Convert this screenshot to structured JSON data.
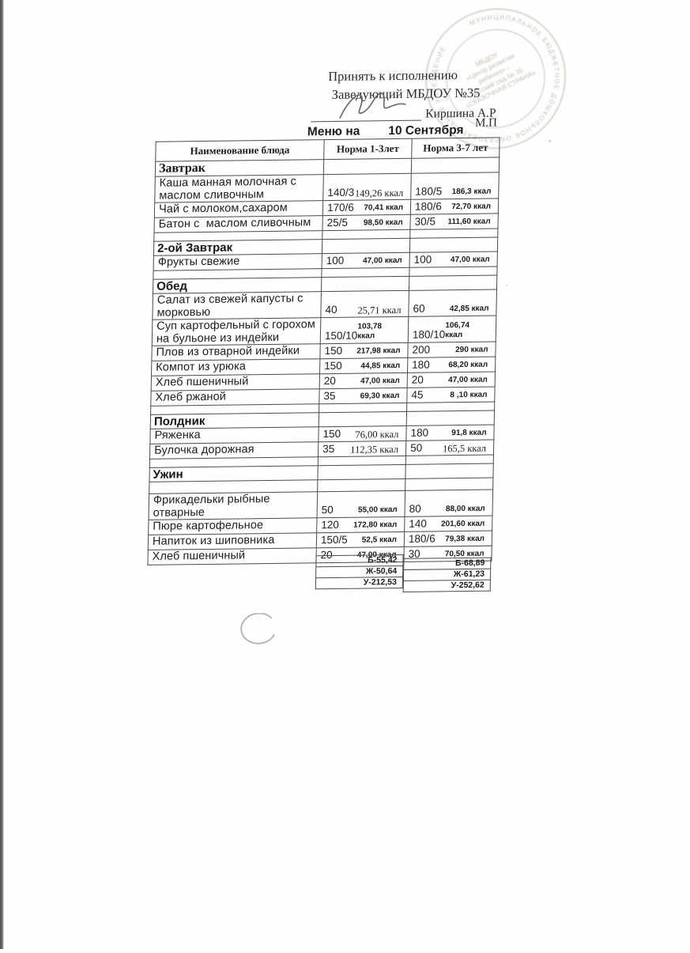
{
  "approval": {
    "line1": "Принять к исполнению",
    "line2": "Заведующий МБДОУ №35",
    "signatory": "Киршина А.Р",
    "seal_abbr": "М.П"
  },
  "title": {
    "prefix": "Меню на",
    "date": "10 Сентября"
  },
  "stamp": {
    "ring_text": "МУНИЦИПАЛЬНОЕ БЮДЖЕТНОЕ ДОШКОЛЬНОЕ ОБРАЗОВАТЕЛЬНОЕ УЧРЕЖДЕНИЕ",
    "center_lines": [
      "МБДОУ",
      "«Центр развития",
      "ребенка» -",
      "детский сад № 35",
      "«СКАЗОЧНАЯ СТРАНА»"
    ]
  },
  "table": {
    "columns": [
      "Наименование блюда",
      "Норма 1-3лет",
      "Норма 3-7 лет"
    ],
    "rows": [
      {
        "type": "section",
        "label": "Завтрак",
        "serif": true
      },
      {
        "type": "dish",
        "name": "Каша манная молочная с маслом сливочным",
        "lines": 2,
        "p1": "140/3",
        "k1": "149,26 ккал",
        "k1_plain": true,
        "p2": "180/5",
        "k2": "186,3 ккал"
      },
      {
        "type": "dish",
        "name": "Чай с молоком,сахаром",
        "p1": "170/6",
        "k1": "70,41 ккал",
        "p2": "180/6",
        "k2": "72,70 ккал"
      },
      {
        "type": "dish",
        "name": "Батон с  маслом сливочным",
        "p1": "25/5",
        "k1": "98,50 ккал",
        "p2": "30/5",
        "k2": "111,60 ккал"
      },
      {
        "type": "spacer"
      },
      {
        "type": "section",
        "label": "2-ой Завтрак"
      },
      {
        "type": "dish",
        "name": "Фрукты свежие",
        "p1": "100",
        "k1": "47,00 ккал",
        "p2": "100",
        "k2": "47,00 ккал"
      },
      {
        "type": "spacer"
      },
      {
        "type": "section",
        "label": "Обед"
      },
      {
        "type": "dish",
        "name": "Салат из свежей капусты с морковью",
        "lines": 2,
        "p1": "40",
        "k1": "25,71 ккал",
        "k1_plain": true,
        "p2": "60",
        "k2": "42,85 ккал"
      },
      {
        "type": "dish",
        "name": "Суп картофельный с горохом на бульоне из индейки",
        "lines": 2,
        "p1": "150/10",
        "k1": "103,78 ккал",
        "p2": "180/10",
        "k2": "106,74 ккал"
      },
      {
        "type": "dish",
        "name": "Плов из отварной индейки",
        "p1": "150",
        "k1": "217,98 ккал",
        "p2": "200",
        "k2": "290 ккал"
      },
      {
        "type": "dish",
        "name": "Компот из урюка",
        "p1": "150",
        "k1": "44,85 ккал",
        "p2": "180",
        "k2": "68,20 ккал"
      },
      {
        "type": "dish",
        "name": "Хлеб пшеничный",
        "p1": "20",
        "k1": "47,00 ккал",
        "p2": "20",
        "k2": "47,00 ккал"
      },
      {
        "type": "dish",
        "name": "Хлеб ржаной",
        "p1": "35",
        "k1": "69,30 ккал",
        "p2": "45",
        "k2": "8 ,10 ккал"
      },
      {
        "type": "spacer"
      },
      {
        "type": "section",
        "label": "Полдник"
      },
      {
        "type": "dish",
        "name": "Ряженка",
        "p1": "150",
        "k1": "76,00 ккал",
        "k1_plain": true,
        "p2": "180",
        "k2": "91,8 ккал"
      },
      {
        "type": "dish",
        "name": "Булочка дорожная",
        "p1": "35",
        "k1": "112,35 ккал",
        "k1_plain": true,
        "p2": "50",
        "k2": "165,5 ккал",
        "k2_plain": true
      },
      {
        "type": "spacer"
      },
      {
        "type": "section",
        "label": "Ужин"
      },
      {
        "type": "spacer",
        "tall": true
      },
      {
        "type": "dish",
        "name": "Фрикадельки рыбные отварные",
        "p1": "50",
        "k1": "55,00 ккал",
        "p2": "80",
        "k2": "88,00 ккал"
      },
      {
        "type": "dish",
        "name": "Пюре картофельное",
        "p1": "120",
        "k1": "172,80 ккал",
        "p2": "140",
        "k2": "201,60 ккал"
      },
      {
        "type": "dish",
        "name": "Напиток из шиповника",
        "p1": "150/5",
        "k1": "52,5 ккал",
        "p2": "180/6",
        "k2": "79,38 ккал"
      },
      {
        "type": "dish",
        "name": "Хлеб пшеничный",
        "p1": "20",
        "k1": "47,00 ккал",
        "p2": "30",
        "k2": "70,50 ккал"
      }
    ],
    "totals": {
      "left": [
        "Б-55,42",
        "Ж-50,64",
        "У-212,53"
      ],
      "right": [
        "Б-68,89",
        "Ж-61,23",
        "У-252,62"
      ]
    }
  }
}
